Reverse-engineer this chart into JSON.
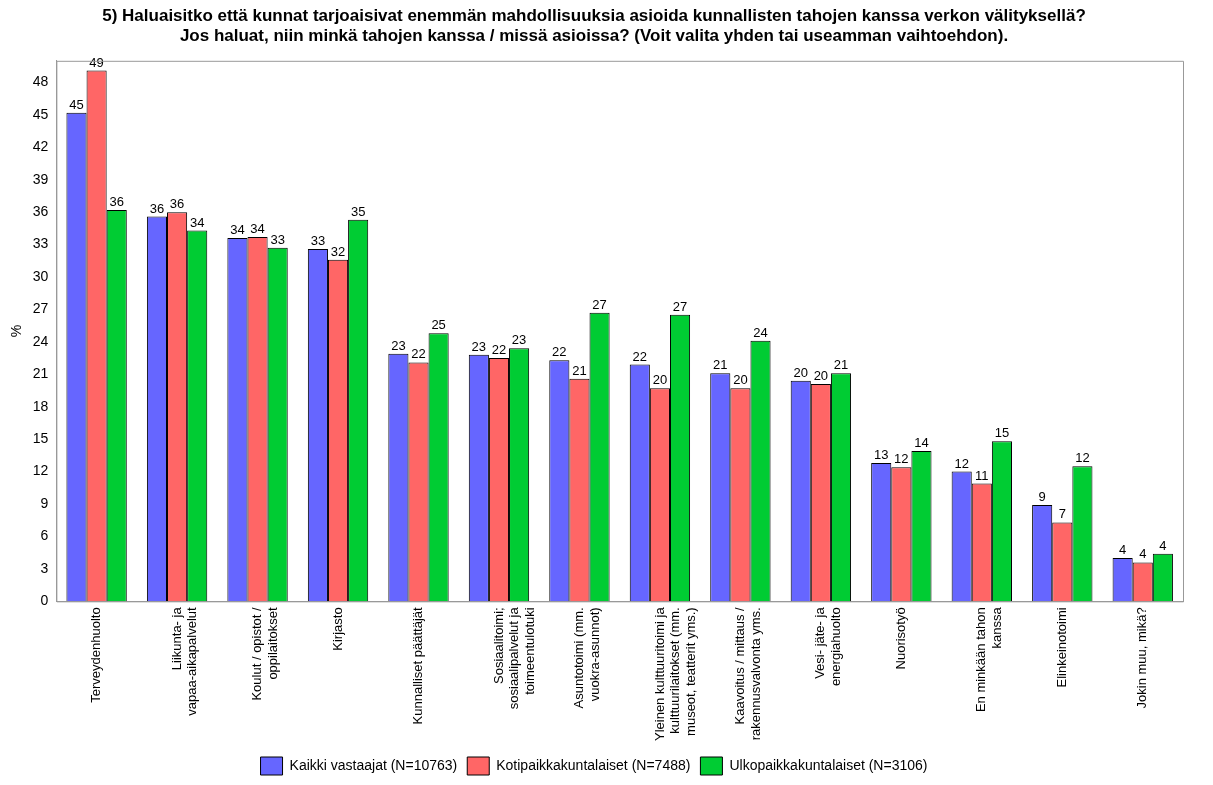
{
  "chart_data": {
    "type": "bar",
    "title": "5) Haluaisitko että kunnat tarjoaisivat enemmän mahdollisuuksia asioida kunnallisten tahojen kanssa verkon välityksellä? Jos haluat, niin minkä tahojen kanssa / missä asioissa? (Voit valita yhden tai useamman vaihtoehdon).",
    "ylabel": "%",
    "categories": [
      "Terveydenhuolto",
      "Liikunta- ja vapaa-aikapalvelut",
      "Koulut / opistot / oppilaitokset",
      "Kirjasto",
      "Kunnalliset päättäjät",
      "Sosiaalitoimi; sosiaalipalvelut ja toimeentulotuki",
      "Asuntotoimi (mm. vuokra-asunnot)",
      "Yleinen kulttuuritoimi ja kulttuurilaitokset (mm. museot, teatterit yms.)",
      "Kaavoitus / mittaus / rakennusvalvonta yms.",
      "Vesi- jäte- ja energiahuolto",
      "Nuorisotyö",
      "En minkään tahon kanssa",
      "Elinkeinotoimi",
      "Jokin muu, mikä?"
    ],
    "series": [
      {
        "name": "Kaikki vastaajat (N=10763)",
        "color": "#6666ff",
        "values": [
          45.2,
          35.6,
          33.6,
          32.6,
          22.9,
          22.8,
          22.3,
          21.9,
          21.1,
          20.4,
          12.8,
          12.0,
          8.9,
          4.0
        ],
        "value_labels": [
          "45",
          "36",
          "34",
          "33",
          "23",
          "23",
          "22",
          "22",
          "21",
          "20",
          "13",
          "12",
          "9",
          "4"
        ]
      },
      {
        "name": "Kotipaikkakuntalaiset (N=7488)",
        "color": "#ff6666",
        "values": [
          49.1,
          36.0,
          33.7,
          31.6,
          22.1,
          22.5,
          20.6,
          19.7,
          19.7,
          20.1,
          12.4,
          10.9,
          7.3,
          3.6
        ],
        "value_labels": [
          "49",
          "36",
          "34",
          "32",
          "22",
          "22",
          "21",
          "20",
          "20",
          "20",
          "12",
          "11",
          "7",
          "4"
        ]
      },
      {
        "name": "Ulkopaikkakuntalaiset (N=3106)",
        "color": "#00cc33",
        "values": [
          36.2,
          34.3,
          32.7,
          35.3,
          24.8,
          23.4,
          26.7,
          26.5,
          24.1,
          21.1,
          13.9,
          14.8,
          12.5,
          4.4
        ],
        "value_labels": [
          "36",
          "34",
          "33",
          "35",
          "25",
          "23",
          "27",
          "27",
          "24",
          "21",
          "14",
          "15",
          "12",
          "4"
        ]
      }
    ],
    "ylim": [
      0,
      50
    ],
    "yticks": [
      0,
      3,
      6,
      9,
      12,
      15,
      18,
      21,
      24,
      27,
      30,
      33,
      36,
      39,
      42,
      45,
      48
    ],
    "grid": false,
    "legend": "bottom"
  }
}
